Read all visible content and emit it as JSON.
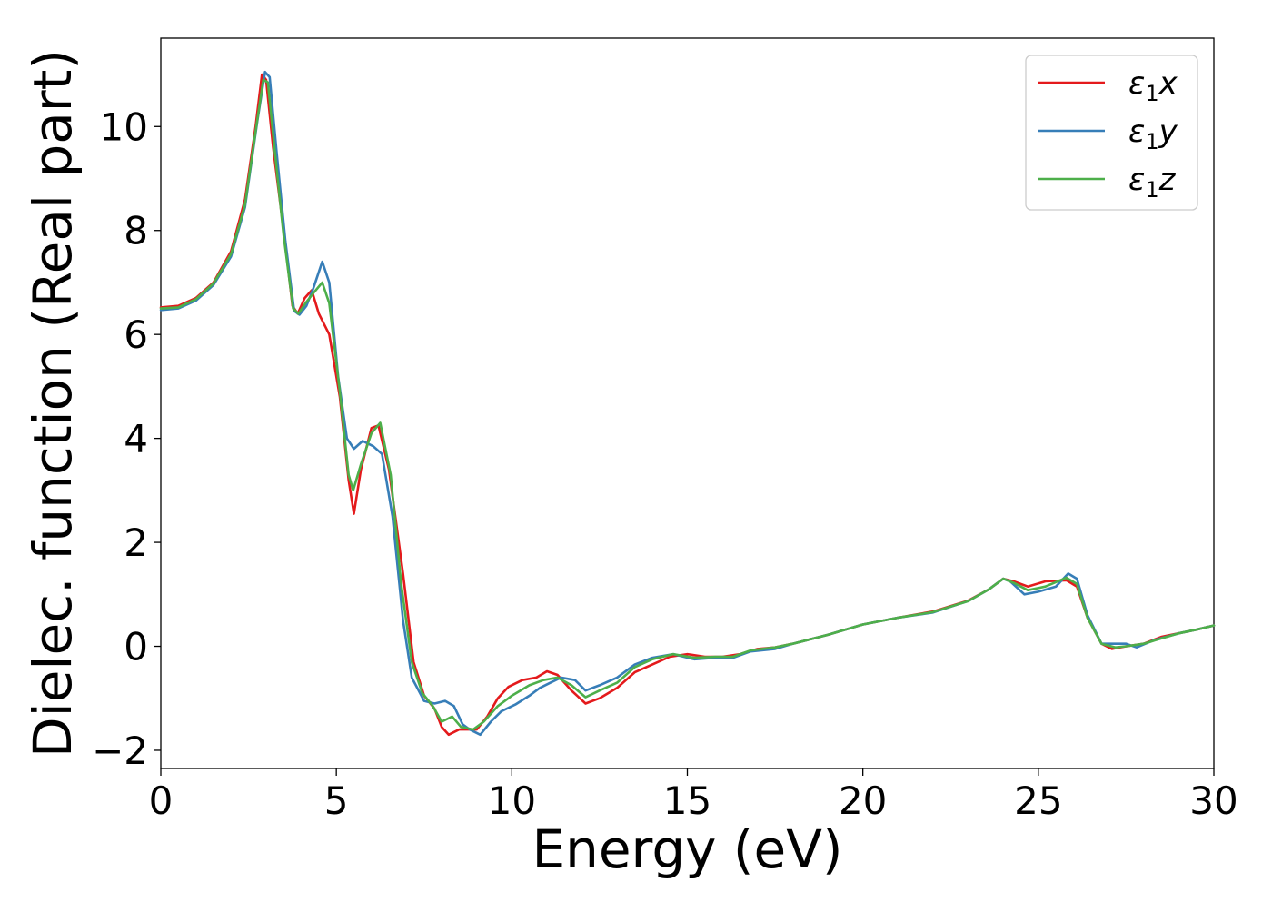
{
  "chart_data": {
    "type": "line",
    "title": "",
    "xlabel": "Energy (eV)",
    "ylabel": "Dielec. function (Real part)",
    "xlim": [
      0,
      30
    ],
    "ylim": [
      -2.35,
      11.7
    ],
    "xticks": [
      0,
      5,
      10,
      15,
      20,
      25,
      30
    ],
    "xtick_labels": [
      "0",
      "5",
      "10",
      "15",
      "20",
      "25",
      "30"
    ],
    "yticks": [
      -2,
      0,
      2,
      4,
      6,
      8,
      10
    ],
    "ytick_labels": [
      "−2",
      "0",
      "2",
      "4",
      "6",
      "8",
      "10"
    ],
    "grid": false,
    "legend_position": "top-right",
    "series": [
      {
        "name": "ε1x",
        "legend_base": "ε",
        "legend_sub": "1",
        "legend_suffix": "x",
        "color": "#e41a1c",
        "points": [
          [
            0,
            6.52
          ],
          [
            0.5,
            6.55
          ],
          [
            1,
            6.7
          ],
          [
            1.5,
            7.0
          ],
          [
            2,
            7.6
          ],
          [
            2.4,
            8.6
          ],
          [
            2.7,
            10.0
          ],
          [
            2.88,
            11.0
          ],
          [
            3.0,
            10.9
          ],
          [
            3.2,
            9.6
          ],
          [
            3.5,
            8.0
          ],
          [
            3.75,
            6.55
          ],
          [
            3.9,
            6.4
          ],
          [
            4.1,
            6.7
          ],
          [
            4.3,
            6.85
          ],
          [
            4.5,
            6.4
          ],
          [
            4.8,
            6.0
          ],
          [
            5.1,
            4.8
          ],
          [
            5.35,
            3.2
          ],
          [
            5.5,
            2.55
          ],
          [
            5.7,
            3.4
          ],
          [
            6.0,
            4.2
          ],
          [
            6.2,
            4.25
          ],
          [
            6.5,
            3.4
          ],
          [
            6.9,
            1.4
          ],
          [
            7.2,
            -0.3
          ],
          [
            7.5,
            -0.95
          ],
          [
            7.8,
            -1.2
          ],
          [
            8.0,
            -1.55
          ],
          [
            8.2,
            -1.7
          ],
          [
            8.5,
            -1.6
          ],
          [
            9.0,
            -1.6
          ],
          [
            9.3,
            -1.35
          ],
          [
            9.6,
            -1.0
          ],
          [
            9.9,
            -0.78
          ],
          [
            10.3,
            -0.65
          ],
          [
            10.7,
            -0.6
          ],
          [
            11.0,
            -0.48
          ],
          [
            11.3,
            -0.55
          ],
          [
            11.7,
            -0.85
          ],
          [
            12.1,
            -1.1
          ],
          [
            12.5,
            -1.0
          ],
          [
            13.0,
            -0.8
          ],
          [
            13.5,
            -0.5
          ],
          [
            14.0,
            -0.35
          ],
          [
            14.5,
            -0.2
          ],
          [
            15.0,
            -0.15
          ],
          [
            15.5,
            -0.2
          ],
          [
            16.0,
            -0.2
          ],
          [
            16.5,
            -0.15
          ],
          [
            17.0,
            -0.05
          ],
          [
            17.5,
            -0.02
          ],
          [
            18.0,
            0.05
          ],
          [
            19.0,
            0.22
          ],
          [
            20.0,
            0.42
          ],
          [
            21.0,
            0.55
          ],
          [
            22.0,
            0.67
          ],
          [
            23.0,
            0.88
          ],
          [
            23.6,
            1.1
          ],
          [
            24.0,
            1.3
          ],
          [
            24.3,
            1.25
          ],
          [
            24.7,
            1.15
          ],
          [
            25.2,
            1.25
          ],
          [
            25.8,
            1.27
          ],
          [
            26.1,
            1.15
          ],
          [
            26.4,
            0.55
          ],
          [
            26.8,
            0.05
          ],
          [
            27.1,
            -0.05
          ],
          [
            27.5,
            0.0
          ],
          [
            28.0,
            0.05
          ],
          [
            28.5,
            0.18
          ],
          [
            29.0,
            0.25
          ],
          [
            29.5,
            0.32
          ],
          [
            30.0,
            0.4
          ]
        ]
      },
      {
        "name": "ε1y",
        "legend_base": "ε",
        "legend_sub": "1",
        "legend_suffix": "y",
        "color": "#377eb8",
        "points": [
          [
            0,
            6.47
          ],
          [
            0.5,
            6.5
          ],
          [
            1,
            6.65
          ],
          [
            1.5,
            6.95
          ],
          [
            2,
            7.5
          ],
          [
            2.4,
            8.45
          ],
          [
            2.75,
            10.1
          ],
          [
            2.97,
            11.05
          ],
          [
            3.1,
            10.95
          ],
          [
            3.3,
            9.5
          ],
          [
            3.55,
            7.8
          ],
          [
            3.8,
            6.45
          ],
          [
            3.95,
            6.38
          ],
          [
            4.15,
            6.55
          ],
          [
            4.35,
            6.9
          ],
          [
            4.6,
            7.4
          ],
          [
            4.8,
            7.0
          ],
          [
            5.05,
            5.2
          ],
          [
            5.3,
            4.0
          ],
          [
            5.5,
            3.8
          ],
          [
            5.75,
            3.95
          ],
          [
            6.05,
            3.85
          ],
          [
            6.3,
            3.7
          ],
          [
            6.6,
            2.5
          ],
          [
            6.9,
            0.5
          ],
          [
            7.15,
            -0.6
          ],
          [
            7.5,
            -1.05
          ],
          [
            7.8,
            -1.1
          ],
          [
            8.1,
            -1.05
          ],
          [
            8.35,
            -1.15
          ],
          [
            8.6,
            -1.5
          ],
          [
            8.8,
            -1.6
          ],
          [
            9.1,
            -1.7
          ],
          [
            9.4,
            -1.45
          ],
          [
            9.7,
            -1.25
          ],
          [
            10.1,
            -1.12
          ],
          [
            10.5,
            -0.95
          ],
          [
            10.8,
            -0.8
          ],
          [
            11.1,
            -0.7
          ],
          [
            11.4,
            -0.6
          ],
          [
            11.8,
            -0.65
          ],
          [
            12.1,
            -0.85
          ],
          [
            12.5,
            -0.75
          ],
          [
            13.0,
            -0.6
          ],
          [
            13.5,
            -0.35
          ],
          [
            14.0,
            -0.22
          ],
          [
            14.6,
            -0.15
          ],
          [
            15.2,
            -0.25
          ],
          [
            15.8,
            -0.22
          ],
          [
            16.3,
            -0.22
          ],
          [
            16.8,
            -0.1
          ],
          [
            17.5,
            -0.05
          ],
          [
            18.0,
            0.05
          ],
          [
            19.0,
            0.22
          ],
          [
            20.0,
            0.42
          ],
          [
            21.0,
            0.55
          ],
          [
            22.0,
            0.65
          ],
          [
            23.0,
            0.87
          ],
          [
            23.6,
            1.1
          ],
          [
            24.0,
            1.3
          ],
          [
            24.2,
            1.25
          ],
          [
            24.6,
            1.0
          ],
          [
            25.0,
            1.05
          ],
          [
            25.5,
            1.15
          ],
          [
            25.85,
            1.4
          ],
          [
            26.1,
            1.3
          ],
          [
            26.4,
            0.6
          ],
          [
            26.8,
            0.05
          ],
          [
            27.2,
            0.05
          ],
          [
            27.5,
            0.05
          ],
          [
            27.8,
            -0.02
          ],
          [
            28.3,
            0.12
          ],
          [
            29.0,
            0.25
          ],
          [
            29.5,
            0.32
          ],
          [
            30.0,
            0.4
          ]
        ]
      },
      {
        "name": "ε1z",
        "legend_base": "ε",
        "legend_sub": "1",
        "legend_suffix": "z",
        "color": "#4daf4a",
        "points": [
          [
            0,
            6.5
          ],
          [
            0.5,
            6.52
          ],
          [
            1,
            6.68
          ],
          [
            1.5,
            6.98
          ],
          [
            2,
            7.55
          ],
          [
            2.4,
            8.5
          ],
          [
            2.72,
            10.0
          ],
          [
            2.92,
            10.9
          ],
          [
            3.05,
            10.85
          ],
          [
            3.25,
            9.5
          ],
          [
            3.5,
            7.9
          ],
          [
            3.77,
            6.5
          ],
          [
            3.92,
            6.4
          ],
          [
            4.12,
            6.6
          ],
          [
            4.35,
            6.8
          ],
          [
            4.6,
            7.0
          ],
          [
            4.8,
            6.6
          ],
          [
            5.1,
            4.9
          ],
          [
            5.35,
            3.3
          ],
          [
            5.48,
            3.0
          ],
          [
            5.7,
            3.5
          ],
          [
            6.0,
            4.1
          ],
          [
            6.25,
            4.3
          ],
          [
            6.55,
            3.3
          ],
          [
            6.85,
            1.2
          ],
          [
            7.15,
            -0.3
          ],
          [
            7.45,
            -0.9
          ],
          [
            7.75,
            -1.15
          ],
          [
            8.0,
            -1.45
          ],
          [
            8.3,
            -1.35
          ],
          [
            8.55,
            -1.55
          ],
          [
            8.9,
            -1.6
          ],
          [
            9.2,
            -1.45
          ],
          [
            9.6,
            -1.15
          ],
          [
            10.0,
            -0.95
          ],
          [
            10.5,
            -0.75
          ],
          [
            10.9,
            -0.65
          ],
          [
            11.3,
            -0.6
          ],
          [
            11.7,
            -0.75
          ],
          [
            12.1,
            -0.98
          ],
          [
            12.5,
            -0.85
          ],
          [
            13.0,
            -0.7
          ],
          [
            13.5,
            -0.4
          ],
          [
            14.0,
            -0.25
          ],
          [
            14.6,
            -0.15
          ],
          [
            15.2,
            -0.22
          ],
          [
            15.8,
            -0.2
          ],
          [
            16.3,
            -0.2
          ],
          [
            16.8,
            -0.08
          ],
          [
            17.5,
            -0.02
          ],
          [
            18.0,
            0.05
          ],
          [
            19.0,
            0.22
          ],
          [
            20.0,
            0.42
          ],
          [
            21.0,
            0.55
          ],
          [
            22.0,
            0.66
          ],
          [
            23.0,
            0.87
          ],
          [
            23.6,
            1.1
          ],
          [
            24.0,
            1.3
          ],
          [
            24.3,
            1.22
          ],
          [
            24.7,
            1.08
          ],
          [
            25.2,
            1.15
          ],
          [
            25.8,
            1.32
          ],
          [
            26.1,
            1.2
          ],
          [
            26.4,
            0.55
          ],
          [
            26.8,
            0.05
          ],
          [
            27.2,
            -0.02
          ],
          [
            27.5,
            0.0
          ],
          [
            28.0,
            0.05
          ],
          [
            28.5,
            0.15
          ],
          [
            29.0,
            0.25
          ],
          [
            29.5,
            0.32
          ],
          [
            30.0,
            0.4
          ]
        ]
      }
    ]
  }
}
